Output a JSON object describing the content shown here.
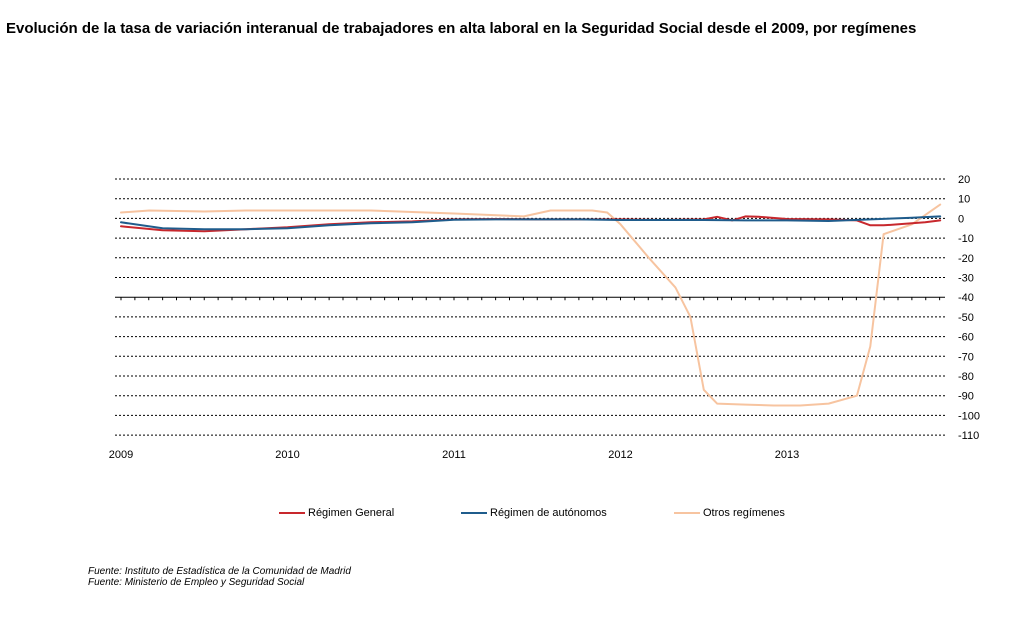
{
  "title": "Evolución de la tasa de variación interanual de trabajadores en alta laboral en la Seguridad Social desde el 2009, por regímenes",
  "sources": [
    "Fuente: Instituto de Estadística de la Comunidad de Madrid",
    "Fuente: Ministerio de Empleo y Seguridad Social"
  ],
  "chart_data": {
    "type": "line",
    "x_ticks": [
      "2009",
      "2010",
      "2011",
      "2012",
      "2013"
    ],
    "y_ticks": [
      20,
      10,
      0,
      -10,
      -20,
      -30,
      -40,
      -50,
      -60,
      -70,
      -80,
      -90,
      -100,
      -110
    ],
    "ylim": [
      -110,
      20
    ],
    "grid": true,
    "legend_position": "bottom",
    "series": [
      {
        "name": "Régimen General",
        "color": "#c8282d",
        "x": [
          2009.0,
          2009.25,
          2009.5,
          2009.75,
          2010.0,
          2010.25,
          2010.5,
          2010.75,
          2011.0,
          2011.25,
          2011.5,
          2011.75,
          2012.0,
          2012.25,
          2012.5,
          2012.58,
          2012.67,
          2012.75,
          2012.83,
          2013.0,
          2013.25,
          2013.42,
          2013.5,
          2013.58,
          2013.67,
          2013.75,
          2013.83,
          2013.92
        ],
        "y": [
          -4,
          -6,
          -6.5,
          -5.5,
          -4.5,
          -3,
          -2,
          -1.5,
          -0.5,
          -0.3,
          -0.5,
          -0.5,
          -0.5,
          -0.8,
          -0.5,
          0.8,
          -1,
          1,
          0.8,
          -0.3,
          -0.5,
          -1,
          -3.5,
          -3.5,
          -3,
          -2.5,
          -2,
          -1
        ]
      },
      {
        "name": "Régimen de autónomos",
        "color": "#1f5c8c",
        "x": [
          2009.0,
          2009.25,
          2009.5,
          2009.75,
          2010.0,
          2010.25,
          2010.5,
          2010.75,
          2011.0,
          2011.25,
          2011.5,
          2011.75,
          2012.0,
          2012.25,
          2012.5,
          2012.75,
          2013.0,
          2013.25,
          2013.5,
          2013.75,
          2013.92
        ],
        "y": [
          -2,
          -5,
          -5.5,
          -5.5,
          -5,
          -3.5,
          -2.5,
          -2,
          -0.7,
          -0.5,
          -0.5,
          -0.5,
          -0.8,
          -0.8,
          -0.8,
          -1,
          -1,
          -1.3,
          -0.5,
          0.3,
          1
        ]
      },
      {
        "name": "Otros regímenes",
        "color": "#f7c4a0",
        "x": [
          2009.0,
          2009.17,
          2009.5,
          2009.75,
          2010.0,
          2010.5,
          2011.0,
          2011.42,
          2011.58,
          2011.83,
          2011.92,
          2012.0,
          2012.17,
          2012.33,
          2012.42,
          2012.5,
          2012.58,
          2012.75,
          2012.92,
          2013.08,
          2013.25,
          2013.42,
          2013.5,
          2013.58,
          2013.75,
          2013.92
        ],
        "y": [
          3,
          4,
          3.5,
          4,
          4,
          4,
          2.5,
          1,
          4,
          4,
          3,
          -3,
          -20,
          -35,
          -50,
          -87,
          -94,
          -94.5,
          -95,
          -95,
          -94,
          -90,
          -65,
          -8,
          -3,
          7
        ]
      }
    ]
  }
}
